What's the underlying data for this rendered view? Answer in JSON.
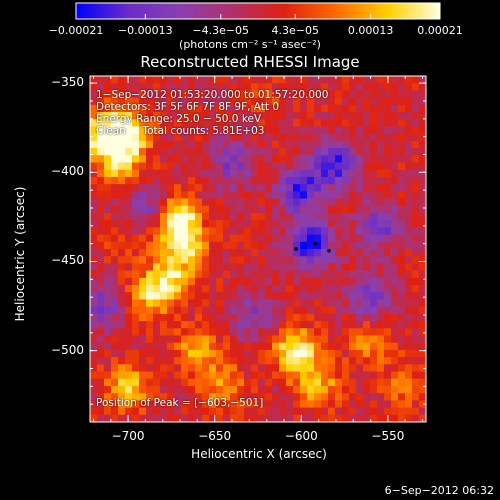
{
  "chart_data": {
    "type": "heatmap",
    "title": "Reconstructed RHESSI Image",
    "xlabel": "Heliocentric X (arcsec)",
    "ylabel": "Heliocentric Y (arcsec)",
    "xlim": [
      -722,
      -528
    ],
    "ylim": [
      -540,
      -346
    ],
    "xticks": [
      -700,
      -650,
      -600,
      -550
    ],
    "yticks": [
      -350,
      -400,
      -450,
      -500
    ],
    "xtick_labels": [
      "−700",
      "−650",
      "−600",
      "−550"
    ],
    "ytick_labels": [
      "−350",
      "−400",
      "−450",
      "−500"
    ],
    "colorbar": {
      "min": -0.00021,
      "max": 0.00021,
      "tick_labels": [
        "−0.00021",
        "−0.00013",
        "−4.3e−05",
        "4.3e−05",
        "0.00013",
        "0.00021"
      ],
      "tick_values": [
        -0.00021,
        -0.00013,
        -4.3e-05,
        4.3e-05,
        0.00013,
        0.00021
      ],
      "unit_label": "(photons cm⁻² s⁻¹ asec⁻²)",
      "colormap": [
        "#0000ff",
        "#6a2bc8",
        "#8a3fb0",
        "#b0306a",
        "#e02010",
        "#ff6a00",
        "#ffd000",
        "#ffffe0"
      ]
    },
    "annotations": {
      "time_range": "1−Sep−2012 01:53:20.000 to 01:57:20.000",
      "detectors": "Detectors: 3F 5F 6F 7F 8F 9F, Att 0",
      "energy": "Energy Range: 25.0 − 50.0 keV",
      "clean": "Clean     Total counts: 5.81E+03",
      "peak": "Position of Peak = [−603,−501]"
    },
    "features": [
      {
        "x": -715,
        "y": -378,
        "value": 0.00018
      },
      {
        "x": -700,
        "y": -378,
        "value": 0.00019
      },
      {
        "x": -705,
        "y": -395,
        "value": 0.00014
      },
      {
        "x": -672,
        "y": -425,
        "value": 0.00019
      },
      {
        "x": -668,
        "y": -440,
        "value": 0.00017
      },
      {
        "x": -676,
        "y": -460,
        "value": 0.00015
      },
      {
        "x": -688,
        "y": -470,
        "value": 0.00012
      },
      {
        "x": -700,
        "y": -520,
        "value": 0.00015
      },
      {
        "x": -660,
        "y": -500,
        "value": 0.00012
      },
      {
        "x": -645,
        "y": -520,
        "value": 0.00011
      },
      {
        "x": -603,
        "y": -501,
        "value": 0.00021
      },
      {
        "x": -590,
        "y": -520,
        "value": 0.00012
      },
      {
        "x": -560,
        "y": -495,
        "value": 0.0001
      },
      {
        "x": -540,
        "y": -520,
        "value": 8e-05
      },
      {
        "x": -595,
        "y": -440,
        "value": -0.00021
      },
      {
        "x": -600,
        "y": -410,
        "value": -0.00018
      },
      {
        "x": -580,
        "y": -395,
        "value": -0.0002
      },
      {
        "x": -555,
        "y": -430,
        "value": -0.00014
      },
      {
        "x": -640,
        "y": -395,
        "value": -0.00012
      },
      {
        "x": -690,
        "y": -420,
        "value": -0.00012
      },
      {
        "x": -715,
        "y": -475,
        "value": -0.00012
      },
      {
        "x": -628,
        "y": -480,
        "value": -0.0001
      },
      {
        "x": -560,
        "y": -470,
        "value": -0.00014
      },
      {
        "x": -700,
        "y": -440,
        "value": 5e-05
      },
      {
        "x": -620,
        "y": -360,
        "value": 4e-05
      }
    ]
  },
  "footer": {
    "timestamp": "6−Sep−2012 06:32"
  }
}
